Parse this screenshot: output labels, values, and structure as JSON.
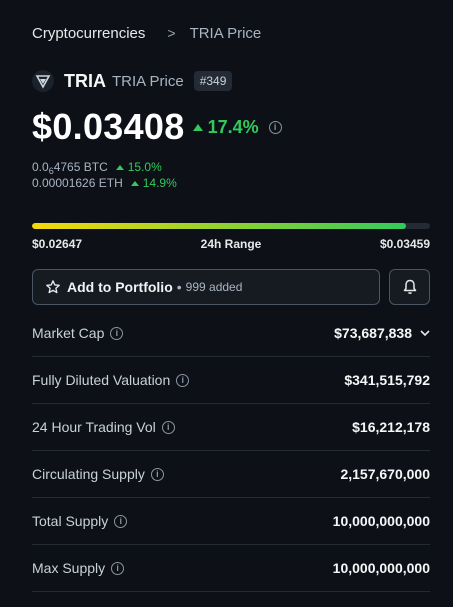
{
  "breadcrumb": {
    "parent": "Cryptocurrencies",
    "separator": ">",
    "current": "TRIA Price"
  },
  "coin": {
    "logo_icon": "tria-logo-icon",
    "name": "TRIA",
    "subtitle": "TRIA Price",
    "rank": "#349"
  },
  "price": {
    "value": "$0.03408",
    "change": "17.4%",
    "change_direction": "up",
    "btc_prefix": "0.0",
    "btc_subscript": "6",
    "btc_suffix": "4765 BTC",
    "btc_change": "15.0%",
    "eth_price": "0.00001626 ETH",
    "eth_change": "14.9%"
  },
  "range": {
    "low": "$0.02647",
    "label": "24h Range",
    "high": "$0.03459",
    "position_fraction": 0.94
  },
  "portfolio": {
    "label": "Add to Portfolio",
    "separator": "•",
    "count": "999 added"
  },
  "stats": [
    {
      "label": "Market Cap",
      "value": "$73,687,838",
      "expandable": true
    },
    {
      "label": "Fully Diluted Valuation",
      "value": "$341,515,792"
    },
    {
      "label": "24 Hour Trading Vol",
      "value": "$16,212,178"
    },
    {
      "label": "Circulating Supply",
      "value": "2,157,670,000"
    },
    {
      "label": "Total Supply",
      "value": "10,000,000,000"
    },
    {
      "label": "Max Supply",
      "value": "10,000,000,000"
    }
  ],
  "colors": {
    "background": "#0d1117",
    "positive": "#32ca5b",
    "range_start": "#f5d90a"
  }
}
